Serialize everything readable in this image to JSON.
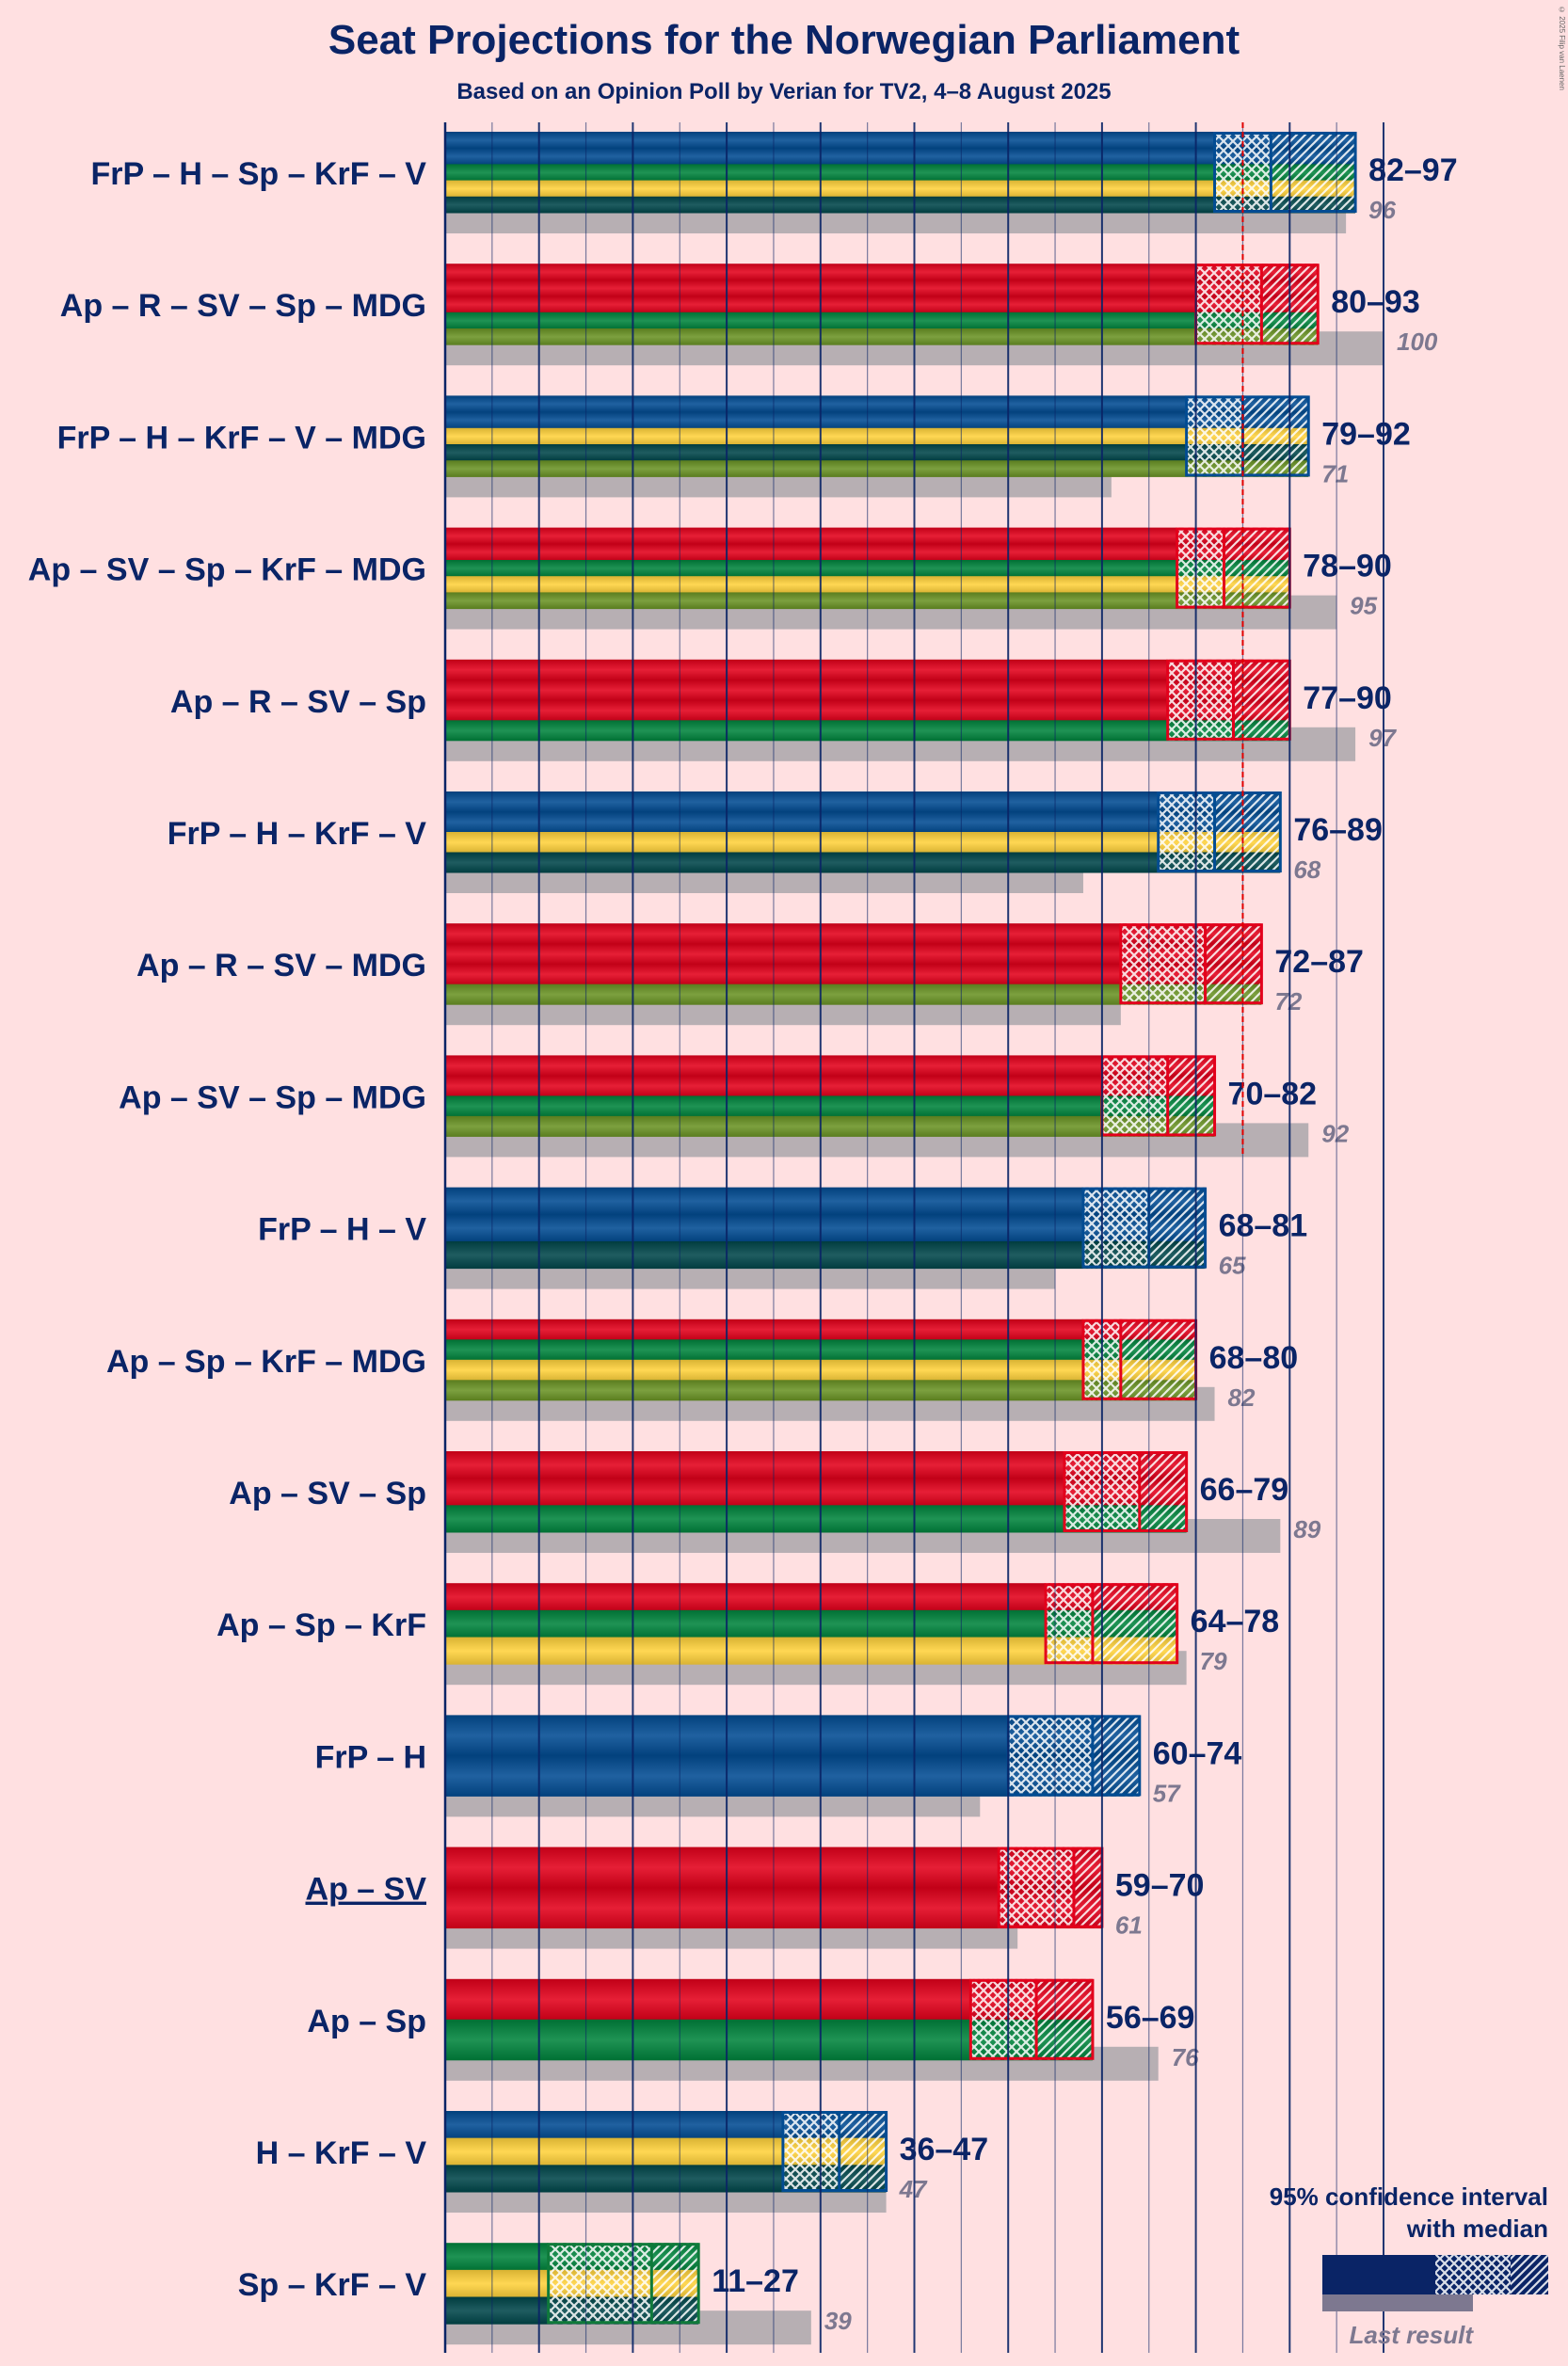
{
  "title": "Seat Projections for the Norwegian Parliament",
  "subtitle": "Based on an Opinion Poll by Verian for TV2, 4–8 August 2025",
  "credit": "© 2025 Filip van Laenen",
  "legend": {
    "title_line1": "95% confidence interval",
    "title_line2": "with median",
    "last_result": "Last result"
  },
  "colors": {
    "background": "#FFE0E1",
    "text_dark": "#0A2466",
    "last_result_bar": "#B7AFB3",
    "last_result_text": "#7D7890",
    "majority_line": "#E00000",
    "FrP": "#024C93",
    "H": "#024C93",
    "Ap": "#E3001B",
    "R": "#E3001B",
    "SV": "#E3001B",
    "Sp": "#00843D",
    "KrF": "#FFD23C",
    "V": "#00464A",
    "MDG": "#6A9325"
  },
  "chart_data": {
    "type": "bar",
    "orientation": "horizontal",
    "unit": "seats",
    "xlim": [
      0,
      100
    ],
    "majority": 85,
    "gridlines": [
      5,
      10,
      15,
      20,
      25,
      30,
      35,
      40,
      45,
      50,
      55,
      60,
      65,
      70,
      75,
      80,
      85,
      90,
      95,
      100
    ],
    "coalitions": [
      {
        "label": "FrP – H – Sp – KrF – V",
        "parties": [
          "FrP",
          "H",
          "Sp",
          "KrF",
          "V"
        ],
        "low": 82,
        "median": 88,
        "high": 97,
        "range_label": "82–97",
        "last": 96,
        "last_label": "96",
        "underline": false
      },
      {
        "label": "Ap – R – SV – Sp – MDG",
        "parties": [
          "Ap",
          "R",
          "SV",
          "Sp",
          "MDG"
        ],
        "low": 80,
        "median": 87,
        "high": 93,
        "range_label": "80–93",
        "last": 100,
        "last_label": "100",
        "underline": false
      },
      {
        "label": "FrP – H – KrF – V – MDG",
        "parties": [
          "FrP",
          "H",
          "KrF",
          "V",
          "MDG"
        ],
        "low": 79,
        "median": 85,
        "high": 92,
        "range_label": "79–92",
        "last": 71,
        "last_label": "71",
        "underline": false
      },
      {
        "label": "Ap – SV – Sp – KrF – MDG",
        "parties": [
          "Ap",
          "SV",
          "Sp",
          "KrF",
          "MDG"
        ],
        "low": 78,
        "median": 83,
        "high": 90,
        "range_label": "78–90",
        "last": 95,
        "last_label": "95",
        "underline": false
      },
      {
        "label": "Ap – R – SV – Sp",
        "parties": [
          "Ap",
          "R",
          "SV",
          "Sp"
        ],
        "low": 77,
        "median": 84,
        "high": 90,
        "range_label": "77–90",
        "last": 97,
        "last_label": "97",
        "underline": false
      },
      {
        "label": "FrP – H – KrF – V",
        "parties": [
          "FrP",
          "H",
          "KrF",
          "V"
        ],
        "low": 76,
        "median": 82,
        "high": 89,
        "range_label": "76–89",
        "last": 68,
        "last_label": "68",
        "underline": false
      },
      {
        "label": "Ap – R – SV – MDG",
        "parties": [
          "Ap",
          "R",
          "SV",
          "MDG"
        ],
        "low": 72,
        "median": 81,
        "high": 87,
        "range_label": "72–87",
        "last": 72,
        "last_label": "72",
        "underline": false
      },
      {
        "label": "Ap – SV – Sp – MDG",
        "parties": [
          "Ap",
          "SV",
          "Sp",
          "MDG"
        ],
        "low": 70,
        "median": 77,
        "high": 82,
        "range_label": "70–82",
        "last": 92,
        "last_label": "92",
        "underline": false
      },
      {
        "label": "FrP – H – V",
        "parties": [
          "FrP",
          "H",
          "V"
        ],
        "low": 68,
        "median": 75,
        "high": 81,
        "range_label": "68–81",
        "last": 65,
        "last_label": "65",
        "underline": false
      },
      {
        "label": "Ap – Sp – KrF – MDG",
        "parties": [
          "Ap",
          "Sp",
          "KrF",
          "MDG"
        ],
        "low": 68,
        "median": 72,
        "high": 80,
        "range_label": "68–80",
        "last": 82,
        "last_label": "82",
        "underline": false
      },
      {
        "label": "Ap – SV – Sp",
        "parties": [
          "Ap",
          "SV",
          "Sp"
        ],
        "low": 66,
        "median": 74,
        "high": 79,
        "range_label": "66–79",
        "last": 89,
        "last_label": "89",
        "underline": false
      },
      {
        "label": "Ap – Sp – KrF",
        "parties": [
          "Ap",
          "Sp",
          "KrF"
        ],
        "low": 64,
        "median": 69,
        "high": 78,
        "range_label": "64–78",
        "last": 79,
        "last_label": "79",
        "underline": false
      },
      {
        "label": "FrP – H",
        "parties": [
          "FrP",
          "H"
        ],
        "low": 60,
        "median": 69,
        "high": 74,
        "range_label": "60–74",
        "last": 57,
        "last_label": "57",
        "underline": false
      },
      {
        "label": "Ap – SV",
        "parties": [
          "Ap",
          "SV"
        ],
        "low": 59,
        "median": 67,
        "high": 70,
        "range_label": "59–70",
        "last": 61,
        "last_label": "61",
        "underline": true
      },
      {
        "label": "Ap – Sp",
        "parties": [
          "Ap",
          "Sp"
        ],
        "low": 56,
        "median": 63,
        "high": 69,
        "range_label": "56–69",
        "last": 76,
        "last_label": "76",
        "underline": false
      },
      {
        "label": "H – KrF – V",
        "parties": [
          "H",
          "KrF",
          "V"
        ],
        "low": 36,
        "median": 42,
        "high": 47,
        "range_label": "36–47",
        "last": 47,
        "last_label": "47",
        "underline": false
      },
      {
        "label": "Sp – KrF – V",
        "parties": [
          "Sp",
          "KrF",
          "V"
        ],
        "low": 11,
        "median": 22,
        "high": 27,
        "range_label": "11–27",
        "last": 39,
        "last_label": "39",
        "underline": false
      }
    ]
  }
}
